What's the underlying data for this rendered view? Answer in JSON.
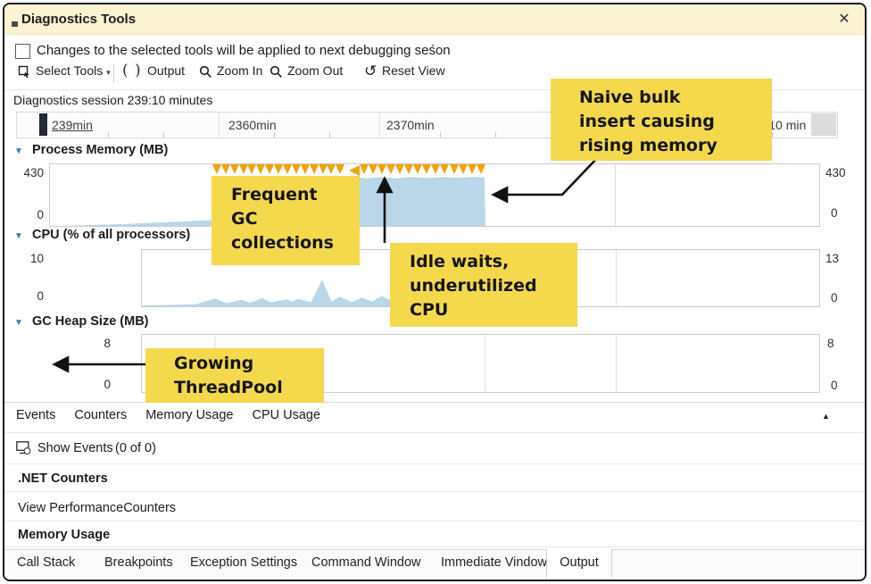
{
  "window": {
    "title": "Diagnostics Tools"
  },
  "icons": {
    "collapse": "▼",
    "collapse_up": "▲",
    "caret": "▾",
    "close": "✕",
    "reset": "↺",
    "output_parens": "( )"
  },
  "notice": {
    "label": "Changes to the selected tools will be applied to next debugging seśon"
  },
  "toolbar": {
    "select_tools": "Select Tools",
    "output": "Output",
    "zoom_in": "Zoom In",
    "zoom_out": "Zoom Out",
    "reset_view": "Reset View"
  },
  "session": {
    "label": "Diagnostics session 239:10 minutes",
    "ruler_labels": [
      "239min",
      "2360min",
      "2370min",
      "239:10 min"
    ]
  },
  "charts": {
    "memory": {
      "title": "Process Memory (MB)",
      "left_max": "430",
      "left_min": "0",
      "right_max": "430",
      "right_min": "0"
    },
    "cpu": {
      "title": "CPU (% of all processors)",
      "left_max": "10",
      "left_min": "0",
      "right_max": "13",
      "right_min": "0"
    },
    "gc": {
      "title": "GC Heap Size (MB)",
      "left_max": "8",
      "left_min": "0",
      "right_max": "8",
      "right_min": "0"
    }
  },
  "annotations": {
    "naive": "Naive bulk\ninsert causing\nrising memory",
    "frequent": "Frequent\nGC\ncollections",
    "idle": "Idle waits,\nunderutilized\nCPU",
    "growing": "Growing\nThreadPool"
  },
  "events_tabs": {
    "items": [
      "Events",
      "Counters",
      "Memory Usage",
      "CPU Usage"
    ]
  },
  "panel": {
    "show_events": "Show Events",
    "show_events_count": "(0 of 0)",
    "net_counters": ".NET Counters",
    "view_performance_counters": "View PerformanceCounters",
    "memory_usage": "Memory Usage"
  },
  "bottom_tabs": {
    "items": [
      "Call Stack",
      "Breakpoints",
      "Exception Settings",
      "Command Window",
      "Immediate Vindow",
      "Output"
    ],
    "selected": "Output"
  },
  "colors": {
    "titlebar": "#FBF3D1",
    "annotation_yellow": "#F5D94D",
    "chart_area_blue": "#B9D7E8",
    "gc_marker_orange": "#F0A30A",
    "collapse_blue": "#2E7CBE"
  },
  "chart_data": [
    {
      "type": "area",
      "title": "Process Memory (MB)",
      "ylabel": "MB",
      "ylim": [
        0,
        430
      ],
      "axis_labels_left": [
        "430",
        "0"
      ],
      "axis_labels_right": [
        "430",
        "0"
      ],
      "series": [
        {
          "name": "process-memory",
          "points": [
            [
              0.02,
              0
            ],
            [
              0.05,
              6
            ],
            [
              0.1,
              14
            ],
            [
              0.15,
              25
            ],
            [
              0.2,
              38
            ],
            [
              0.24,
              48
            ],
            [
              0.25,
              52
            ],
            [
              0.3,
              55
            ],
            [
              0.35,
              57
            ],
            [
              0.38,
              58
            ],
            [
              0.385,
              325
            ],
            [
              0.395,
              345
            ],
            [
              0.41,
              332
            ],
            [
              0.43,
              340
            ],
            [
              0.45,
              333
            ],
            [
              0.47,
              342
            ],
            [
              0.49,
              335
            ],
            [
              0.51,
              341
            ],
            [
              0.53,
              336
            ],
            [
              0.55,
              342
            ],
            [
              0.565,
              338
            ],
            [
              0.566,
              0
            ]
          ]
        }
      ],
      "gc_markers": {
        "strip1_start": 0.211,
        "strip1_end": 0.383,
        "strip1_count": 15,
        "arrow_x": 0.388,
        "strip2_start": 0.402,
        "strip2_end": 0.566,
        "strip2_count": 14
      },
      "dividers": [
        0.735
      ]
    },
    {
      "type": "area",
      "title": "CPU (% of all processors)",
      "ylabel": "%",
      "ylim": [
        0,
        13
      ],
      "axis_labels_left": [
        "10",
        "0"
      ],
      "axis_labels_right": [
        "13",
        "0"
      ],
      "series": [
        {
          "name": "cpu-percent",
          "points": [
            [
              0,
              0.2
            ],
            [
              0.04,
              0.3
            ],
            [
              0.08,
              0.5
            ],
            [
              0.108,
              1.8
            ],
            [
              0.125,
              0.7
            ],
            [
              0.147,
              1.5
            ],
            [
              0.16,
              0.8
            ],
            [
              0.178,
              1.9
            ],
            [
              0.19,
              0.9
            ],
            [
              0.213,
              1.6
            ],
            [
              0.222,
              1.1
            ],
            [
              0.23,
              1.7
            ],
            [
              0.25,
              1.0
            ],
            [
              0.266,
              6.2
            ],
            [
              0.28,
              1.1
            ],
            [
              0.292,
              2.2
            ],
            [
              0.31,
              1.0
            ],
            [
              0.325,
              2.0
            ],
            [
              0.34,
              1.1
            ],
            [
              0.354,
              2.4
            ],
            [
              0.37,
              1.2
            ],
            [
              0.4,
              1.8
            ],
            [
              0.43,
              1.0
            ],
            [
              0.46,
              1.5
            ],
            [
              0.49,
              1.0
            ],
            [
              0.507,
              0.2
            ]
          ]
        }
      ],
      "dividers": [
        0.7
      ]
    },
    {
      "type": "area",
      "title": "GC Heap Size (MB)",
      "ylabel": "MB",
      "ylim": [
        0,
        8
      ],
      "axis_labels_left": [
        "8",
        "0"
      ],
      "axis_labels_right": [
        "8",
        "0"
      ],
      "series": [],
      "dividers": [
        0.108,
        0.507,
        0.7
      ]
    }
  ]
}
